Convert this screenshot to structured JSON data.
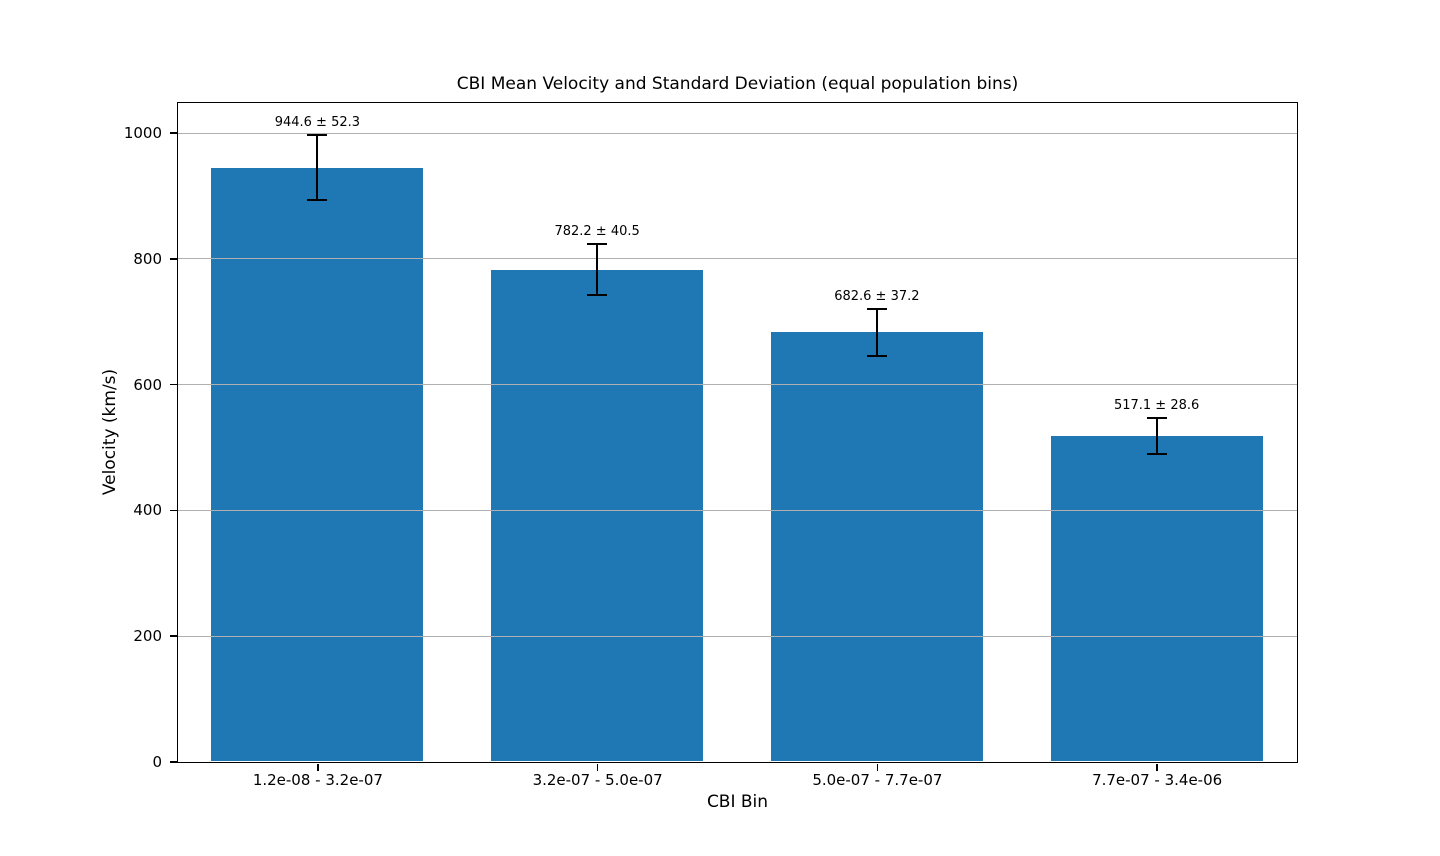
{
  "chart_data": {
    "type": "bar",
    "title": "CBI Mean Velocity and Standard Deviation (equal population bins)",
    "xlabel": "CBI Bin",
    "ylabel": "Velocity (km/s)",
    "categories": [
      "1.2e-08 - 3.2e-07",
      "3.2e-07 - 5.0e-07",
      "5.0e-07 - 7.7e-07",
      "7.7e-07 - 3.4e-06"
    ],
    "values": [
      944.6,
      782.2,
      682.6,
      517.1
    ],
    "errors": [
      52.3,
      40.5,
      37.2,
      28.6
    ],
    "annotations": [
      "944.6 ± 52.3",
      "782.2 ± 40.5",
      "682.6 ± 37.2",
      "517.1 ± 28.6"
    ],
    "yticks": [
      0,
      200,
      400,
      600,
      800,
      1000
    ],
    "ylim": [
      0,
      1048
    ],
    "grid": true,
    "legend": "none",
    "bar_color": "#1f77b4",
    "grid_color": "#b0b0b0",
    "error_color": "#000000",
    "background_color": "#ffffff"
  }
}
